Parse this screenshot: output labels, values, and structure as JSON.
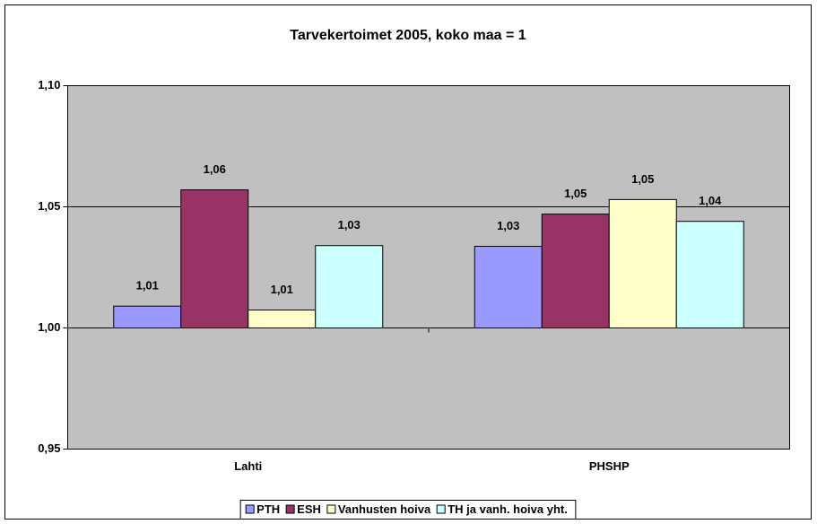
{
  "chart_data": {
    "type": "bar",
    "title": "Tarvekertoimet 2005, koko maa = 1",
    "categories": [
      "Lahti",
      "PHSHP"
    ],
    "series": [
      {
        "name": "PTH",
        "color": "#9999ff",
        "values": [
          1.009,
          1.0337
        ],
        "value_labels": [
          "1,01",
          "1,03"
        ]
      },
      {
        "name": "ESH",
        "color": "#993366",
        "values": [
          1.057,
          1.047
        ],
        "value_labels": [
          "1,06",
          "1,05"
        ]
      },
      {
        "name": "Vanhusten hoiva",
        "color": "#ffffcc",
        "values": [
          1.0074,
          1.053
        ],
        "value_labels": [
          "1,01",
          "1,05"
        ]
      },
      {
        "name": "TH ja vanh. hoiva yht.",
        "color": "#ccffff",
        "values": [
          1.034,
          1.044
        ],
        "value_labels": [
          "1,03",
          "1,04"
        ]
      }
    ],
    "ylim": [
      0.95,
      1.1
    ],
    "yticks": [
      {
        "value": 0.95,
        "label": "0,95"
      },
      {
        "value": 1.0,
        "label": "1,00"
      },
      {
        "value": 1.05,
        "label": "1,05"
      },
      {
        "value": 1.1,
        "label": "1,10"
      }
    ],
    "grid": true,
    "legend": "bottom"
  }
}
